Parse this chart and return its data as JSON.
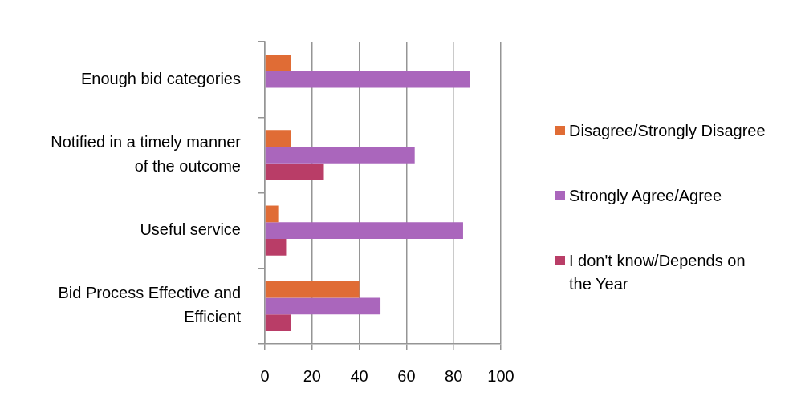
{
  "chart_data": {
    "type": "bar",
    "orientation": "horizontal",
    "categories": [
      "Enough bid categories",
      "Notified in a timely manner of the outcome",
      "Useful service",
      "Bid Process Effective and Efficient"
    ],
    "series": [
      {
        "name": "Disagree/Strongly Disagree",
        "color": "#e06c35",
        "values": [
          11,
          11,
          6,
          40
        ]
      },
      {
        "name": "Strongly Agree/Agree",
        "color": "#aa66bc",
        "values": [
          87,
          63.5,
          84,
          49
        ]
      },
      {
        "name": "I don't know/Depends on the Year",
        "color": "#b93d67",
        "values": [
          0,
          25,
          9,
          11
        ]
      }
    ],
    "xlim": [
      0,
      100
    ],
    "xticks": [
      0,
      20,
      40,
      60,
      80,
      100
    ],
    "grid": "x",
    "legend": "right"
  }
}
